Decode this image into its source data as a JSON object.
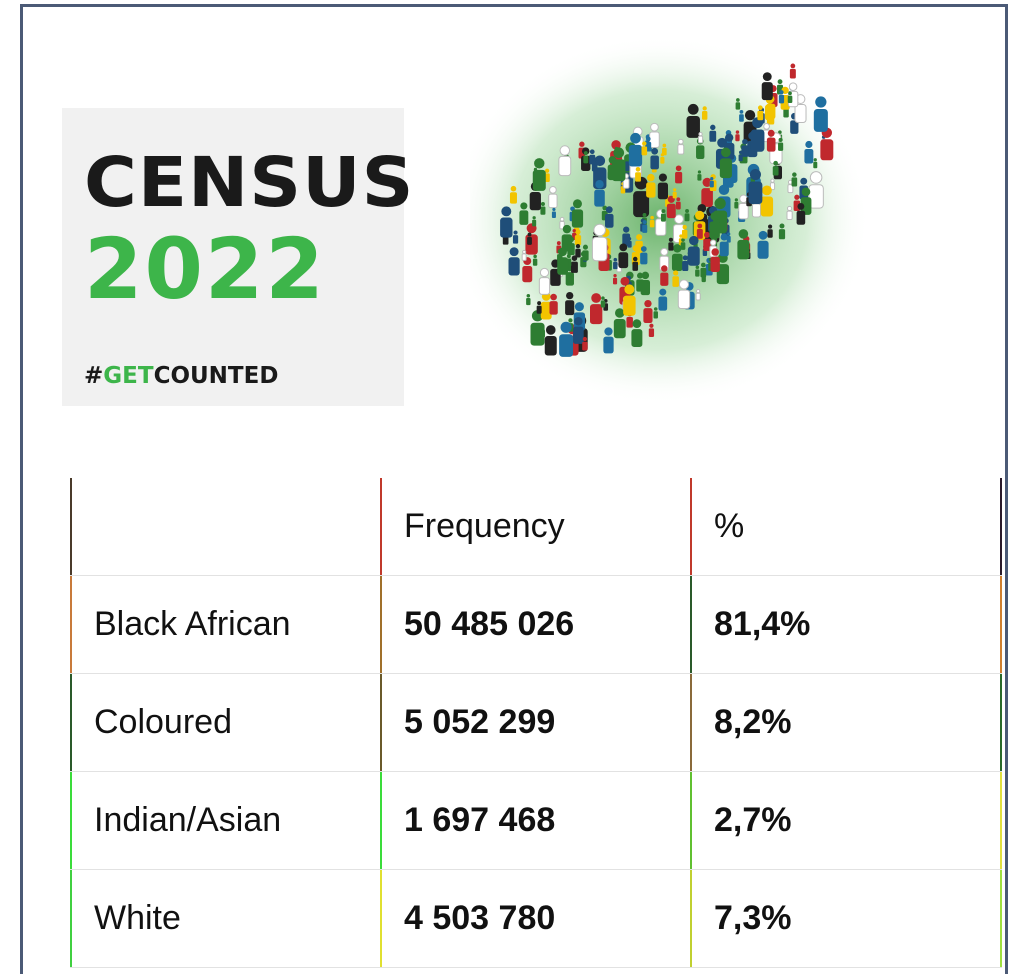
{
  "logo": {
    "line1": "CENSUS",
    "line2": "2022",
    "hashtag": [
      "#",
      "GET",
      "COUNTED"
    ]
  },
  "table": {
    "header": [
      "Frequency",
      "%"
    ],
    "rows": [
      [
        "Black African",
        "50 485 026",
        "81,4%"
      ],
      [
        "Coloured",
        "5 052 299",
        "8,2%"
      ],
      [
        "Indian/Asian",
        "1 697 468",
        "2,7%"
      ],
      [
        "White",
        "4 503 780",
        "7,3%"
      ]
    ]
  }
}
